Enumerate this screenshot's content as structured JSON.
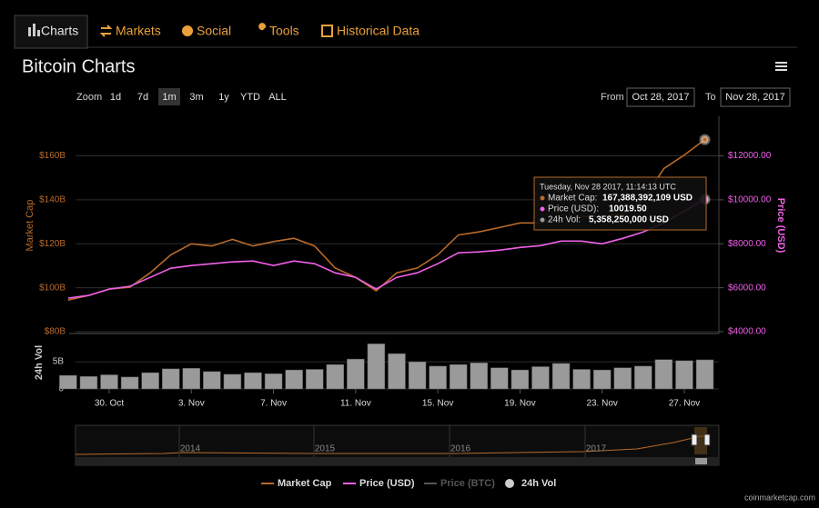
{
  "tabs": [
    "Charts",
    "Markets",
    "Social",
    "Tools",
    "Historical Data"
  ],
  "title": "Bitcoin Charts",
  "zoom": {
    "label": "Zoom",
    "options": [
      "1d",
      "7d",
      "1m",
      "3m",
      "1y",
      "YTD",
      "ALL"
    ]
  },
  "range": {
    "from_label": "From",
    "from": "Oct 28, 2017",
    "to_label": "To",
    "to": "Nov 28, 2017"
  },
  "tooltip": {
    "date": "Tuesday, Nov 28 2017, 11:14:13 UTC",
    "rows": [
      {
        "label": "Market Cap:",
        "value": "167,388,392,109 USD"
      },
      {
        "label": "Price (USD):",
        "value": "10019.50"
      },
      {
        "label": "24h Vol:",
        "value": "5,358,250,000 USD"
      }
    ]
  },
  "navigator_years": [
    "2014",
    "2015",
    "2016",
    "2017"
  ],
  "inactive_legend": "Price (BTC)",
  "credit": "coinmarketcap.com",
  "chart_data": [
    {
      "type": "line",
      "y_label": "Market Cap",
      "y2_label": "Price (USD)",
      "ylim": [
        80,
        178
      ],
      "yticks": [
        {
          "value": 80,
          "label": "$80B"
        },
        {
          "value": 100,
          "label": "$100B"
        },
        {
          "value": 120,
          "label": "$120B"
        },
        {
          "value": 140,
          "label": "$140B"
        },
        {
          "value": 160,
          "label": "$160B"
        }
      ],
      "y2lim": [
        4000,
        13800
      ],
      "y2ticks": [
        {
          "value": 4000,
          "label": "$4000.00"
        },
        {
          "value": 6000,
          "label": "$6000.00"
        },
        {
          "value": 8000,
          "label": "$8000.00"
        },
        {
          "value": 10000,
          "label": "$10000.00"
        },
        {
          "value": 12000,
          "label": "$12000.00"
        }
      ],
      "grid": true,
      "series": [
        {
          "name": "Market Cap",
          "color": "#b86a2a",
          "values": [
            94.4,
            96.5,
            99.4,
            100.2,
            106.8,
            115,
            120,
            119,
            122,
            119,
            121,
            122.5,
            119,
            109,
            104.7,
            98.6,
            106.8,
            109,
            115,
            124,
            125.4,
            127.4,
            129.5,
            129.5,
            131.5,
            132.4,
            132.4,
            133.6,
            139.8,
            154.2,
            160.4,
            167.4
          ]
        },
        {
          "name": "Price (USD)",
          "color": "#f060e8",
          "axis": "y2",
          "values": [
            5526,
            5649,
            5938,
            6062,
            6474,
            6887,
            7010,
            7093,
            7175,
            7216,
            7010,
            7216,
            7093,
            6680,
            6474,
            5938,
            6474,
            6680,
            7093,
            7588,
            7629,
            7711,
            7835,
            7917,
            8124,
            8124,
            8000,
            8247,
            8536,
            8948,
            9485,
            10019.5
          ]
        }
      ]
    },
    {
      "type": "bar",
      "y_label": "24h Vol",
      "categories": [
        null,
        null,
        "30. Oct",
        null,
        null,
        null,
        "3. Nov",
        null,
        null,
        null,
        "7. Nov",
        null,
        null,
        null,
        "11. Nov",
        null,
        null,
        null,
        "15. Nov",
        null,
        null,
        null,
        "19. Nov",
        null,
        null,
        null,
        "23. Nov",
        null,
        null,
        null,
        "27. Nov",
        null
      ],
      "ylim": [
        0,
        9.7
      ],
      "yticks": [
        0,
        {
          "value": 5,
          "label": "5B"
        }
      ],
      "series": [
        {
          "name": "24h Vol",
          "color": "#9a9a9a",
          "values": [
            2.5,
            2.3,
            2.6,
            2.2,
            3.0,
            3.7,
            3.8,
            3.2,
            2.7,
            3.0,
            2.8,
            3.5,
            3.6,
            4.5,
            5.5,
            8.3,
            6.5,
            5.0,
            4.2,
            4.5,
            4.8,
            3.9,
            3.5,
            4.1,
            4.7,
            3.6,
            3.5,
            3.9,
            4.2,
            5.4,
            5.2,
            5.36
          ]
        }
      ]
    }
  ]
}
